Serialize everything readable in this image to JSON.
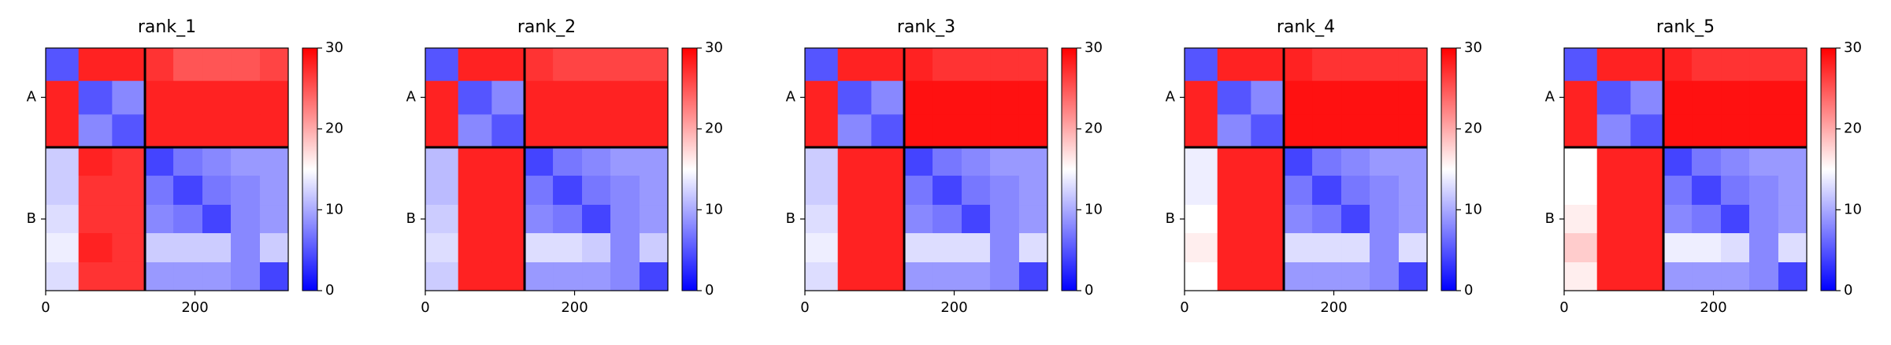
{
  "chart_data": [
    {
      "type": "heatmap",
      "title": "rank_1",
      "cmap": [
        "#0000ff",
        "#ffffff",
        "#ff0000"
      ],
      "bins": [
        0,
        44,
        89,
        133,
        171,
        210,
        248,
        287,
        325
      ],
      "z": [
        [
          5,
          28,
          28,
          27,
          25,
          25,
          25,
          26
        ],
        [
          28,
          5,
          8,
          28,
          28,
          28,
          28,
          28
        ],
        [
          28,
          8,
          5,
          28,
          28,
          28,
          28,
          28
        ],
        [
          12,
          28,
          27,
          4,
          7,
          8,
          9,
          9
        ],
        [
          12,
          27,
          27,
          7,
          4,
          7,
          8,
          9
        ],
        [
          13,
          27,
          27,
          8,
          7,
          4,
          8,
          9
        ],
        [
          14,
          28,
          27,
          12,
          12,
          12,
          8,
          12
        ],
        [
          13,
          27,
          27,
          9,
          9,
          9,
          8,
          4
        ]
      ],
      "chain_boundaries": [
        133
      ],
      "xlim": [
        0,
        325
      ],
      "ylim": [
        325,
        0
      ],
      "xticks": [
        0,
        200
      ],
      "yticks": [
        {
          "value": 66,
          "label": "A"
        },
        {
          "value": 229,
          "label": "B"
        }
      ],
      "clim": [
        0,
        30
      ],
      "cticks": [
        0,
        10,
        20,
        30
      ]
    },
    {
      "type": "heatmap",
      "title": "rank_2",
      "cmap": [
        "#0000ff",
        "#ffffff",
        "#ff0000"
      ],
      "bins": [
        0,
        44,
        89,
        133,
        171,
        210,
        248,
        287,
        325
      ],
      "z": [
        [
          5,
          28,
          28,
          27,
          26,
          26,
          26,
          26
        ],
        [
          28,
          5,
          8,
          28,
          28,
          28,
          28,
          28
        ],
        [
          28,
          8,
          5,
          28,
          28,
          28,
          28,
          28
        ],
        [
          11,
          28,
          28,
          4,
          7,
          8,
          9,
          9
        ],
        [
          11,
          28,
          28,
          7,
          4,
          7,
          8,
          9
        ],
        [
          12,
          28,
          28,
          8,
          7,
          4,
          8,
          9
        ],
        [
          13,
          28,
          28,
          13,
          13,
          12,
          8,
          12
        ],
        [
          12,
          28,
          28,
          9,
          9,
          9,
          8,
          4
        ]
      ],
      "chain_boundaries": [
        133
      ],
      "xlim": [
        0,
        325
      ],
      "ylim": [
        325,
        0
      ],
      "xticks": [
        0,
        200
      ],
      "yticks": [
        {
          "value": 66,
          "label": "A"
        },
        {
          "value": 229,
          "label": "B"
        }
      ],
      "clim": [
        0,
        30
      ],
      "cticks": [
        0,
        10,
        20,
        30
      ]
    },
    {
      "type": "heatmap",
      "title": "rank_3",
      "cmap": [
        "#0000ff",
        "#ffffff",
        "#ff0000"
      ],
      "bins": [
        0,
        44,
        89,
        133,
        171,
        210,
        248,
        287,
        325
      ],
      "z": [
        [
          5,
          28,
          28,
          28,
          27,
          27,
          27,
          27
        ],
        [
          28,
          5,
          8,
          29,
          29,
          29,
          29,
          29
        ],
        [
          28,
          8,
          5,
          29,
          29,
          29,
          29,
          29
        ],
        [
          12,
          28,
          28,
          4,
          7,
          8,
          9,
          9
        ],
        [
          12,
          28,
          28,
          7,
          4,
          7,
          8,
          9
        ],
        [
          13,
          28,
          28,
          8,
          7,
          4,
          8,
          9
        ],
        [
          14,
          28,
          28,
          13,
          13,
          13,
          8,
          13
        ],
        [
          13,
          28,
          28,
          9,
          9,
          9,
          8,
          4
        ]
      ],
      "chain_boundaries": [
        133
      ],
      "xlim": [
        0,
        325
      ],
      "ylim": [
        325,
        0
      ],
      "xticks": [
        0,
        200
      ],
      "yticks": [
        {
          "value": 66,
          "label": "A"
        },
        {
          "value": 229,
          "label": "B"
        }
      ],
      "clim": [
        0,
        30
      ],
      "cticks": [
        0,
        10,
        20,
        30
      ]
    },
    {
      "type": "heatmap",
      "title": "rank_4",
      "cmap": [
        "#0000ff",
        "#ffffff",
        "#ff0000"
      ],
      "bins": [
        0,
        44,
        89,
        133,
        171,
        210,
        248,
        287,
        325
      ],
      "z": [
        [
          5,
          28,
          28,
          28,
          27,
          27,
          27,
          27
        ],
        [
          28,
          5,
          8,
          29,
          29,
          29,
          29,
          29
        ],
        [
          28,
          8,
          5,
          29,
          29,
          29,
          29,
          29
        ],
        [
          14,
          28,
          28,
          4,
          7,
          8,
          9,
          9
        ],
        [
          14,
          28,
          28,
          7,
          4,
          7,
          8,
          9
        ],
        [
          15,
          28,
          28,
          8,
          7,
          4,
          8,
          9
        ],
        [
          16,
          28,
          28,
          13,
          13,
          13,
          8,
          13
        ],
        [
          15,
          28,
          28,
          9,
          9,
          9,
          8,
          4
        ]
      ],
      "chain_boundaries": [
        133
      ],
      "xlim": [
        0,
        325
      ],
      "ylim": [
        325,
        0
      ],
      "xticks": [
        0,
        200
      ],
      "yticks": [
        {
          "value": 66,
          "label": "A"
        },
        {
          "value": 229,
          "label": "B"
        }
      ],
      "clim": [
        0,
        30
      ],
      "cticks": [
        0,
        10,
        20,
        30
      ]
    },
    {
      "type": "heatmap",
      "title": "rank_5",
      "cmap": [
        "#0000ff",
        "#ffffff",
        "#ff0000"
      ],
      "bins": [
        0,
        44,
        89,
        133,
        171,
        210,
        248,
        287,
        325
      ],
      "z": [
        [
          5,
          28,
          28,
          28,
          27,
          27,
          27,
          27
        ],
        [
          28,
          5,
          8,
          29,
          29,
          29,
          29,
          29
        ],
        [
          28,
          8,
          5,
          29,
          29,
          29,
          29,
          29
        ],
        [
          15,
          28,
          28,
          4,
          7,
          8,
          9,
          9
        ],
        [
          15,
          28,
          28,
          7,
          4,
          7,
          8,
          9
        ],
        [
          16,
          28,
          28,
          8,
          7,
          4,
          8,
          9
        ],
        [
          18,
          28,
          28,
          14,
          14,
          13,
          8,
          13
        ],
        [
          16,
          28,
          28,
          9,
          9,
          9,
          8,
          4
        ]
      ],
      "chain_boundaries": [
        133
      ],
      "xlim": [
        0,
        325
      ],
      "ylim": [
        325,
        0
      ],
      "xticks": [
        0,
        200
      ],
      "yticks": [
        {
          "value": 66,
          "label": "A"
        },
        {
          "value": 229,
          "label": "B"
        }
      ],
      "clim": [
        0,
        30
      ],
      "cticks": [
        0,
        10,
        20,
        30
      ]
    }
  ]
}
